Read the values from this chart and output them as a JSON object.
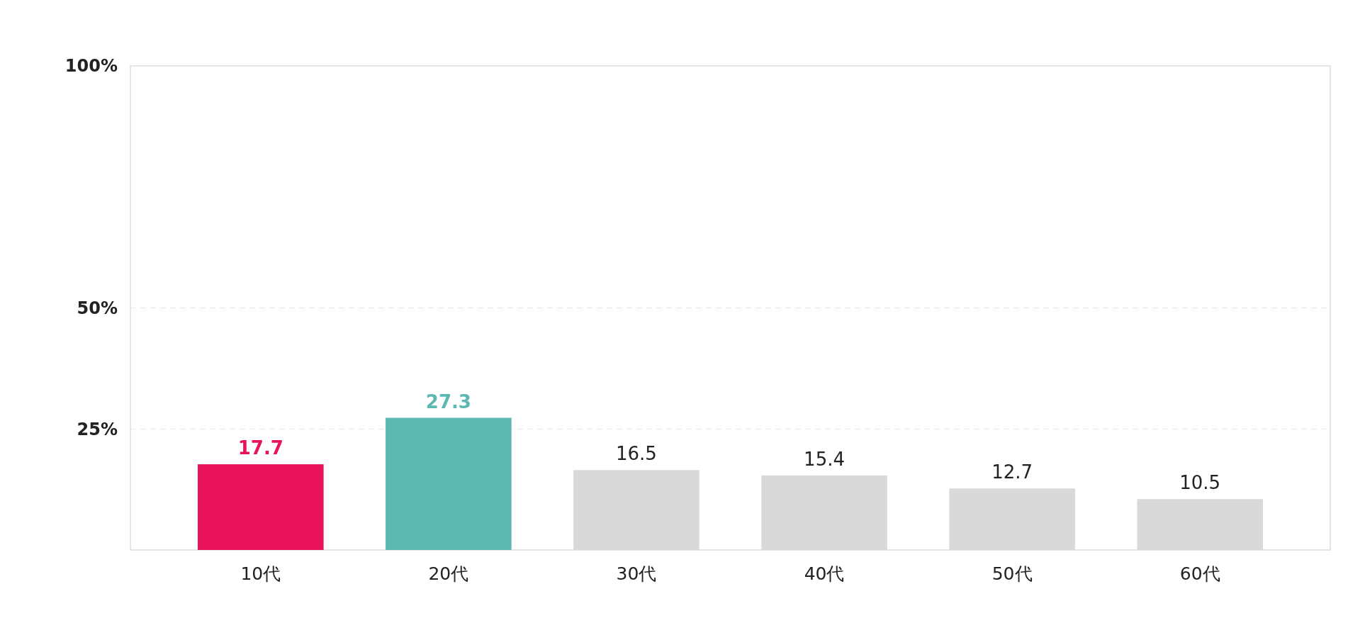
{
  "chart_data": {
    "type": "bar",
    "categories": [
      "10代",
      "20代",
      "30代",
      "40代",
      "50代",
      "60代"
    ],
    "values": [
      17.7,
      27.3,
      16.5,
      15.4,
      12.7,
      10.5
    ],
    "colors": [
      "#e8135a",
      "#5cb9b1",
      "#d9d9d9",
      "#d9d9d9",
      "#d9d9d9",
      "#d9d9d9"
    ],
    "ylim": [
      0,
      100
    ],
    "yticks": [
      {
        "value": 25,
        "label": "25%"
      },
      {
        "value": 50,
        "label": "50%"
      },
      {
        "value": 100,
        "label": "100%"
      }
    ],
    "grid": "y",
    "data_labels": true
  }
}
